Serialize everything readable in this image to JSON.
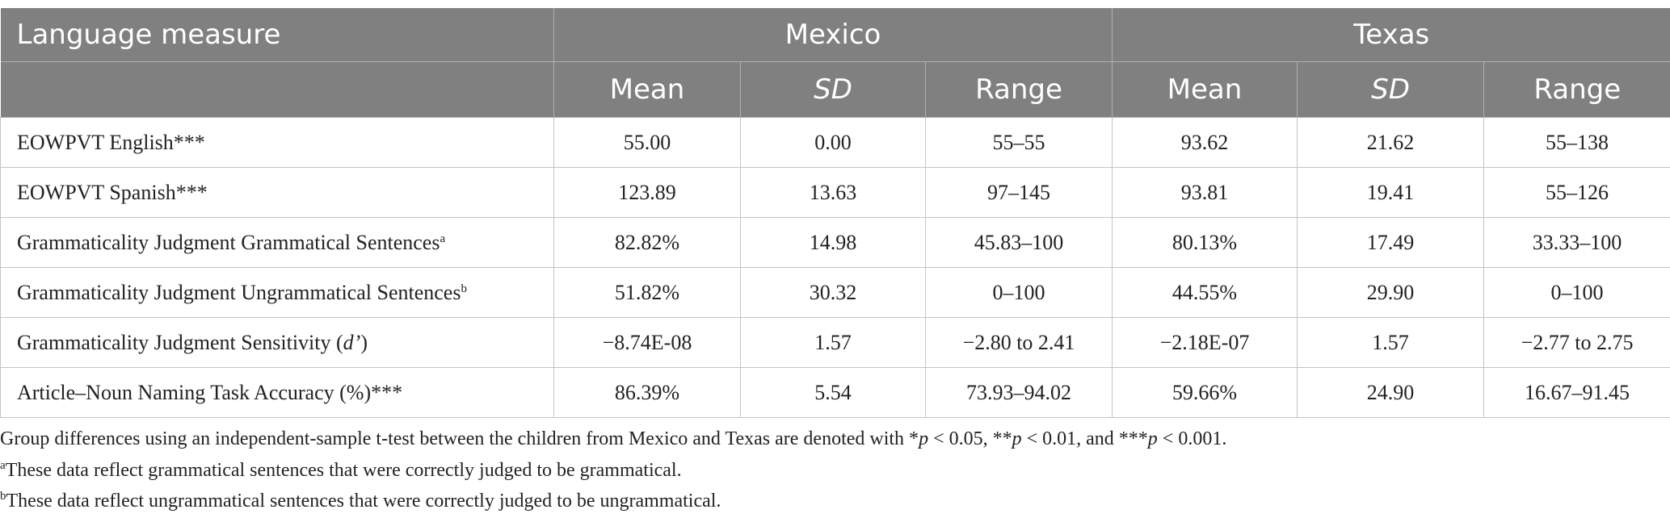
{
  "table": {
    "header": {
      "measure": "Language measure",
      "groups": [
        "Mexico",
        "Texas"
      ],
      "columns": [
        {
          "text": "Mean"
        },
        {
          "text": "SD",
          "style": "italic"
        },
        {
          "text": "Range"
        },
        {
          "text": "Mean"
        },
        {
          "text": "SD",
          "style": "italic"
        },
        {
          "text": "Range"
        }
      ]
    },
    "rows": [
      {
        "label": [
          {
            "text": "EOWPVT English***"
          }
        ],
        "cells": [
          "55.00",
          "0.00",
          "55–55",
          "93.62",
          "21.62",
          "55–138"
        ]
      },
      {
        "label": [
          {
            "text": "EOWPVT Spanish***"
          }
        ],
        "cells": [
          "123.89",
          "13.63",
          "97–145",
          "93.81",
          "19.41",
          "55–126"
        ]
      },
      {
        "label": [
          {
            "text": "Grammaticality Judgment Grammatical Sentences"
          },
          {
            "text": "a",
            "style": "sup"
          }
        ],
        "cells": [
          "82.82%",
          "14.98",
          "45.83–100",
          "80.13%",
          "17.49",
          "33.33–100"
        ]
      },
      {
        "label": [
          {
            "text": "Grammaticality Judgment Ungrammatical Sentences"
          },
          {
            "text": "b",
            "style": "sup"
          }
        ],
        "cells": [
          "51.82%",
          "30.32",
          "0–100",
          "44.55%",
          "29.90",
          "0–100"
        ]
      },
      {
        "label": [
          {
            "text": "Grammaticality Judgment Sensitivity ("
          },
          {
            "text": "d’",
            "style": "italic"
          },
          {
            "text": ")"
          }
        ],
        "cells": [
          "−8.74E-08",
          "1.57",
          "−2.80 to 2.41",
          "−2.18E-07",
          "1.57",
          "−2.77 to 2.75"
        ]
      },
      {
        "label": [
          {
            "text": "Article–Noun Naming Task Accuracy (%)***"
          }
        ],
        "cells": [
          "86.39%",
          "5.54",
          "73.93–94.02",
          "59.66%",
          "24.90",
          "16.67–91.45"
        ]
      }
    ]
  },
  "footnotes": [
    [
      {
        "text": "Group differences using an independent-sample t-test between the children from Mexico and Texas are denoted with *"
      },
      {
        "text": "p",
        "style": "italic"
      },
      {
        "text": " < 0.05, **"
      },
      {
        "text": "p",
        "style": "italic"
      },
      {
        "text": " < 0.01, and ***"
      },
      {
        "text": "p",
        "style": "italic"
      },
      {
        "text": " < 0.001."
      }
    ],
    [
      {
        "text": "a",
        "style": "sup"
      },
      {
        "text": "These data reflect grammatical sentences that were correctly judged to be grammatical."
      }
    ],
    [
      {
        "text": "b",
        "style": "sup"
      },
      {
        "text": "These data reflect ungrammatical sentences that were correctly judged to be ungrammatical."
      }
    ]
  ]
}
